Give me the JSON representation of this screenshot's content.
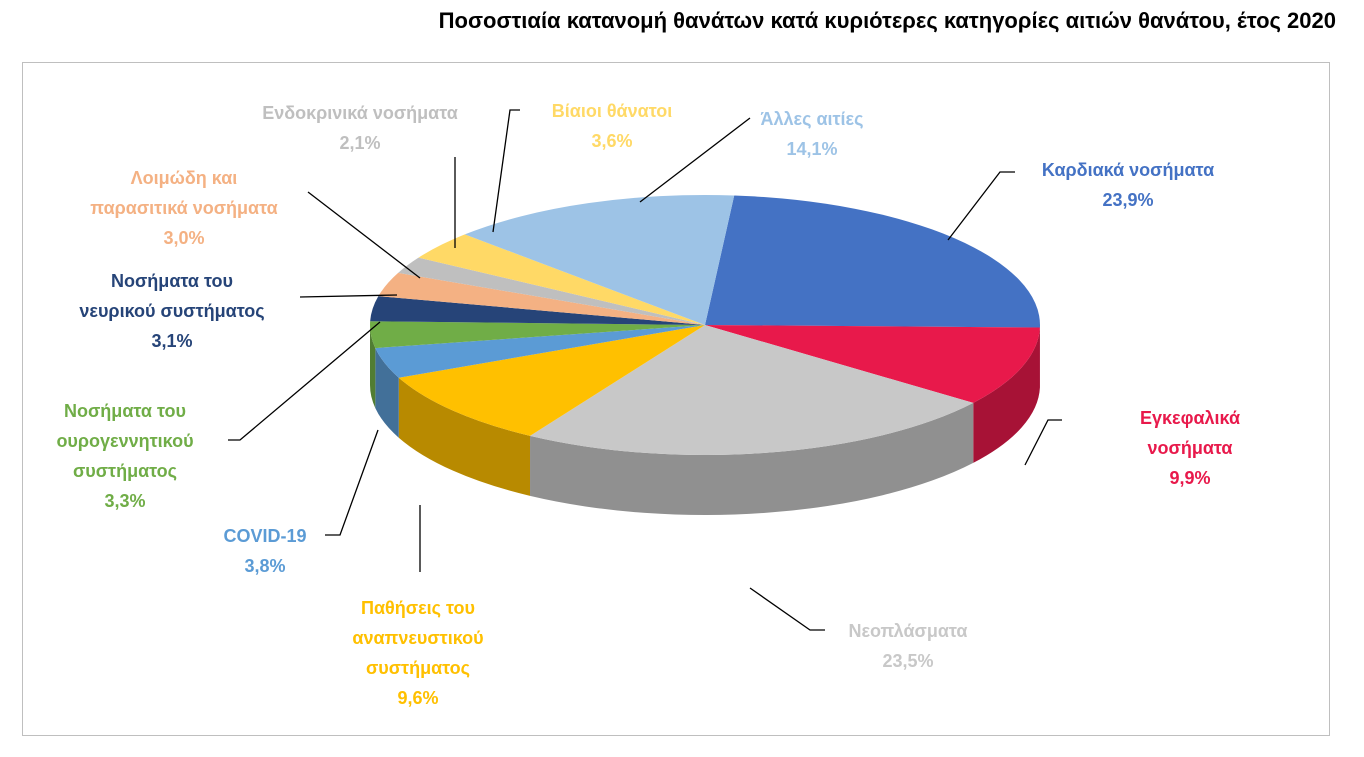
{
  "chart_data": {
    "type": "pie",
    "title": "Ποσοστιαία κατανομή θανάτων κατά κυριότερες κατηγορίες αιτιών θανάτου, έτος 2020",
    "categories": [
      "Καρδιακά νοσήματα",
      "Εγκεφαλικά νοσήματα",
      "Νεοπλάσματα",
      "Παθήσεις του\nαναπνευστικού\nσυστήματος",
      "COVID-19",
      "Νοσήματα του\nουρογεννητικού\nσυστήματος",
      "Νοσήματα του\nνευρικού συστήματος",
      "Λοιμώδη και\nπαρασιτικά νοσήματα",
      "Ενδοκρινικά νοσήματα",
      "Βίαιοι θάνατοι",
      "Άλλες αιτίες"
    ],
    "values": [
      23.9,
      9.9,
      23.5,
      9.6,
      3.8,
      3.3,
      3.1,
      3.0,
      2.1,
      3.6,
      14.1
    ],
    "value_labels": [
      "23,9%",
      "9,9%",
      "23,5%",
      "9,6%",
      "3,8%",
      "3,3%",
      "3,1%",
      "3,0%",
      "2,1%",
      "3,6%",
      "14,1%"
    ],
    "colors": [
      "#4472c4",
      "#e8194b",
      "#c8c8c8",
      "#ffc000",
      "#5b9bd5",
      "#70ad47",
      "#264478",
      "#f4b183",
      "#bfbfbf",
      "#ffd966",
      "#9dc3e6"
    ]
  }
}
